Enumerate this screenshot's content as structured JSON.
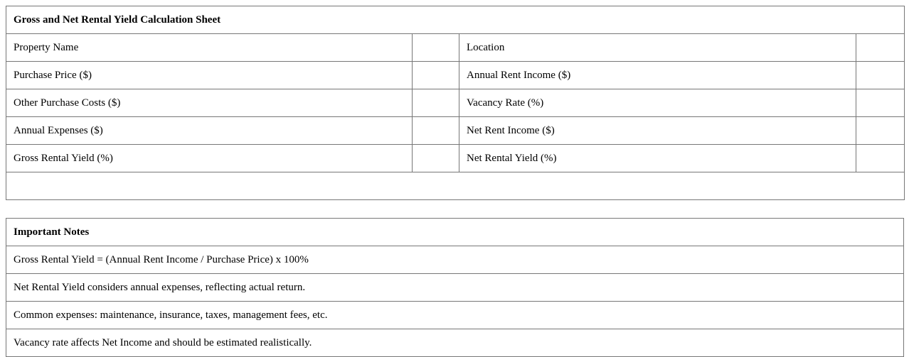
{
  "sheet": {
    "title": "Gross and Net Rental Yield Calculation Sheet",
    "rows": [
      {
        "left_label": "Property Name",
        "left_value": "",
        "right_label": "Location",
        "right_value": ""
      },
      {
        "left_label": "Purchase Price ($)",
        "left_value": "",
        "right_label": "Annual Rent Income ($)",
        "right_value": ""
      },
      {
        "left_label": "Other Purchase Costs ($)",
        "left_value": "",
        "right_label": "Vacancy Rate (%)",
        "right_value": ""
      },
      {
        "left_label": "Annual Expenses ($)",
        "left_value": "",
        "right_label": "Net Rent Income ($)",
        "right_value": ""
      },
      {
        "left_label": "Gross Rental Yield (%)",
        "left_value": "",
        "right_label": "Net Rental Yield (%)",
        "right_value": ""
      }
    ]
  },
  "notes": {
    "title": "Important Notes",
    "items": [
      "Gross Rental Yield = (Annual Rent Income / Purchase Price) x 100%",
      "Net Rental Yield considers annual expenses, reflecting actual return.",
      "Common expenses: maintenance, insurance, taxes, management fees, etc.",
      "Vacancy rate affects Net Income and should be estimated realistically."
    ]
  }
}
